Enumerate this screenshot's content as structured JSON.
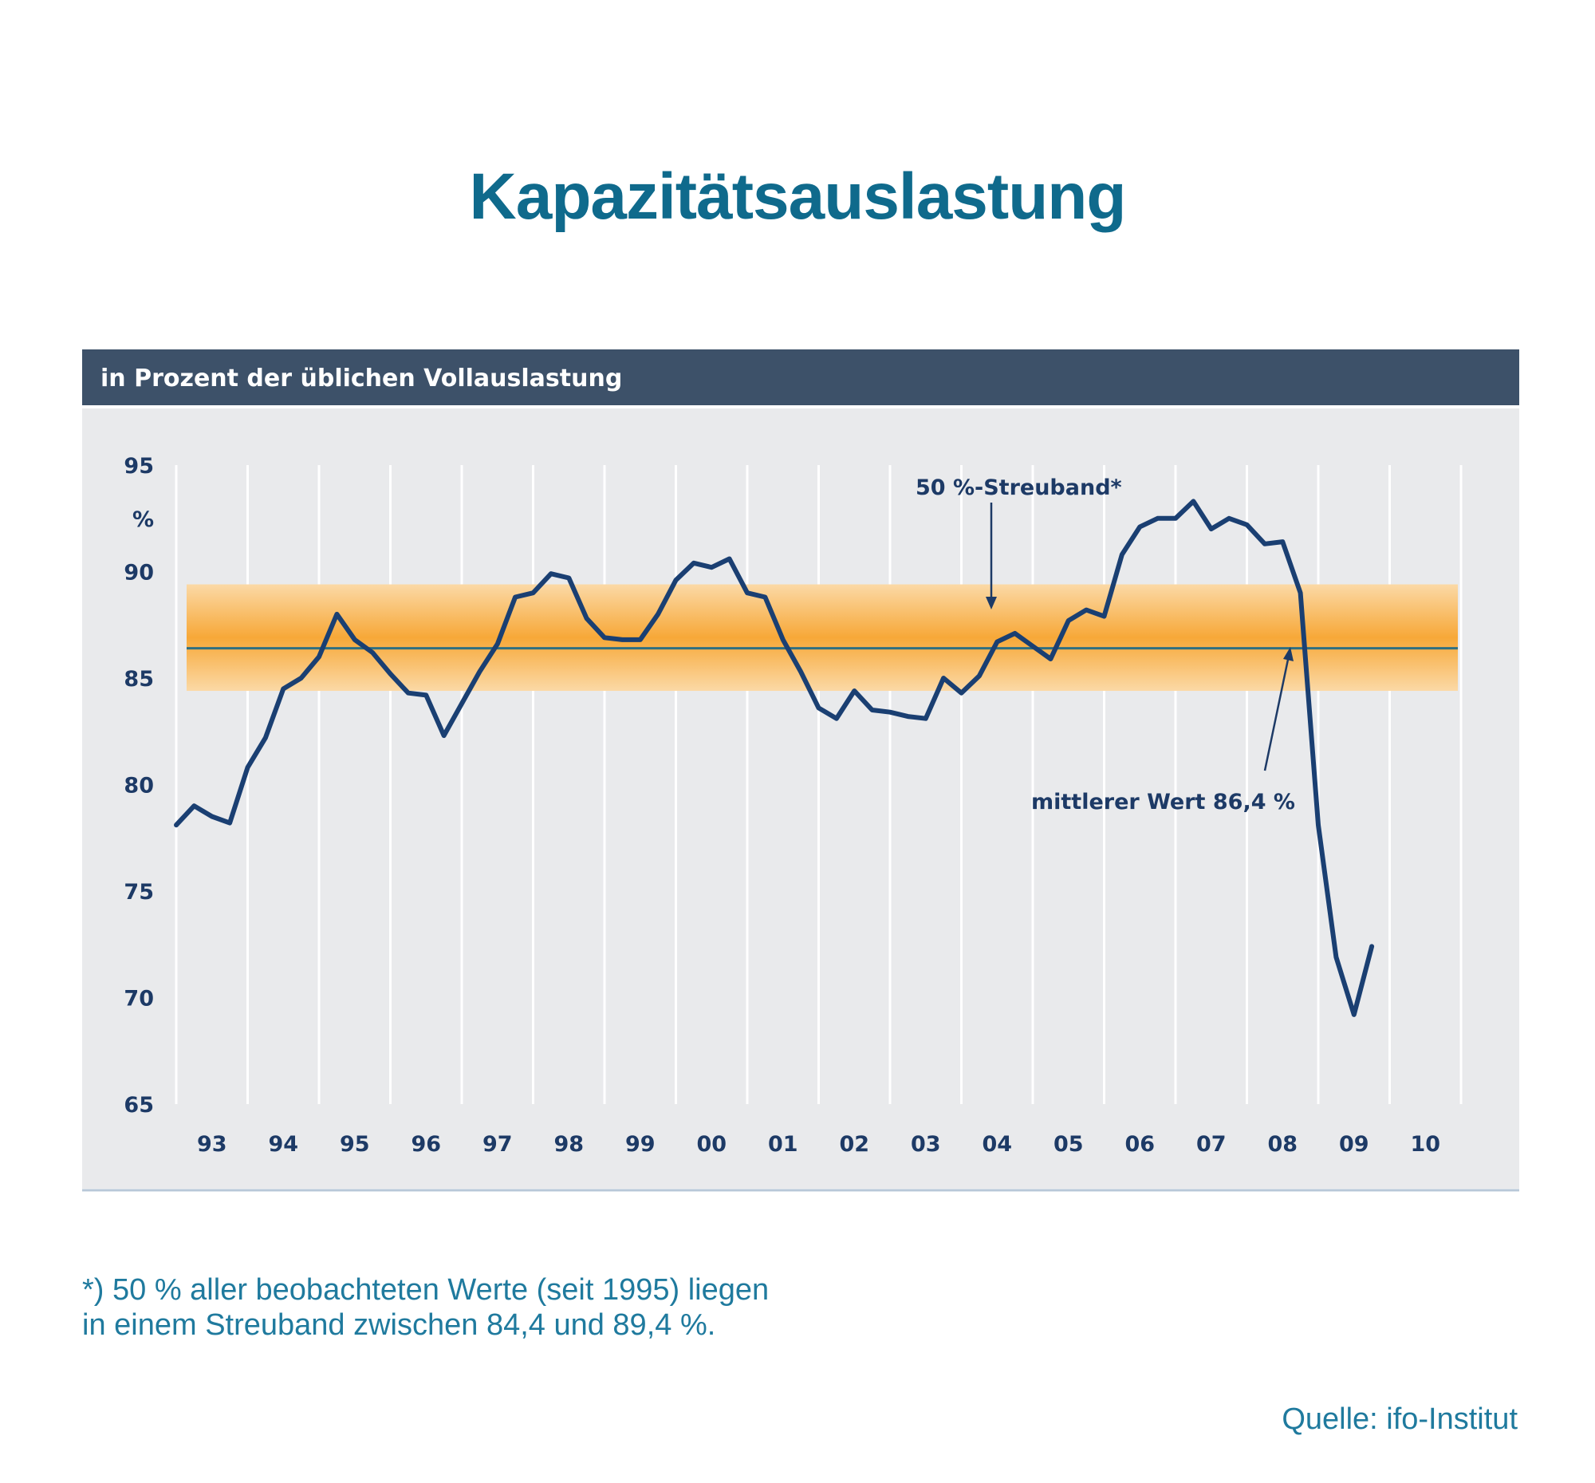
{
  "title": "Kapazitätsauslastung",
  "footnote": {
    "line1": "*) 50 % aller beobachteten Werte (seit 1995) liegen",
    "line2": "in einem Streuband zwischen 84,4 und 89,4 %."
  },
  "source": "Quelle: ifo-Institut",
  "colors": {
    "header_bar": "#3d5169",
    "plot_bg": "#e9eaec",
    "gridline": "#ffffff",
    "line": "#1a3f72",
    "band": "#f7a838",
    "mean_line": "#2f6f80",
    "title": "#0f6a8c",
    "text": "#1d3a66"
  },
  "chart_data": {
    "type": "line",
    "subtitle": "in Prozent der üblichen Vollauslastung",
    "ylabel": "%",
    "ylim": [
      65,
      95
    ],
    "yticks": [
      65,
      70,
      75,
      80,
      85,
      90,
      95
    ],
    "xlim": [
      1993,
      2011
    ],
    "xtick_labels": [
      "93",
      "94",
      "95",
      "96",
      "97",
      "98",
      "99",
      "00",
      "01",
      "02",
      "03",
      "04",
      "05",
      "06",
      "07",
      "08",
      "09",
      "10"
    ],
    "grid": true,
    "band": {
      "label": "50 %-Streuband*",
      "low": 84.4,
      "high": 89.4
    },
    "mean": {
      "label": "mittlerer Wert 86,4 %",
      "value": 86.4
    },
    "series": [
      {
        "x": [
          1993.0,
          1993.25,
          1993.5,
          1993.75,
          1994.0,
          1994.25,
          1994.5,
          1994.75,
          1995.0,
          1995.25,
          1995.5,
          1995.75,
          1996.0,
          1996.25,
          1996.5,
          1996.75,
          1997.0,
          1997.25,
          1997.5,
          1997.75,
          1998.0,
          1998.25,
          1998.5,
          1998.75,
          1999.0,
          1999.25,
          1999.5,
          1999.75,
          2000.0,
          2000.25,
          2000.5,
          2000.75,
          2001.0,
          2001.25,
          2001.5,
          2001.75,
          2002.0,
          2002.25,
          2002.5,
          2002.75,
          2003.0,
          2003.25,
          2003.5,
          2003.75,
          2004.0,
          2004.25,
          2004.5,
          2004.75,
          2005.0,
          2005.25,
          2005.5,
          2005.75,
          2006.0,
          2006.25,
          2006.5,
          2006.75,
          2007.0,
          2007.25,
          2007.5,
          2007.75,
          2008.0,
          2008.25,
          2008.5,
          2008.75,
          2009.0,
          2009.25,
          2009.5,
          2009.75
        ],
        "values": [
          78.1,
          79.0,
          78.5,
          78.2,
          80.8,
          82.2,
          84.5,
          85.0,
          86.0,
          88.0,
          86.8,
          86.2,
          85.2,
          84.3,
          84.2,
          82.3,
          83.8,
          85.3,
          86.6,
          88.8,
          89.0,
          89.9,
          89.7,
          87.8,
          86.9,
          86.8,
          86.8,
          88.0,
          89.6,
          90.4,
          90.2,
          90.6,
          89.0,
          88.8,
          86.8,
          85.3,
          83.6,
          83.1,
          84.4,
          83.5,
          83.4,
          83.2,
          83.1,
          85.0,
          84.3,
          85.1,
          86.7,
          87.1,
          86.5,
          85.9,
          87.7,
          88.2,
          87.9,
          90.8,
          92.1,
          92.5,
          92.5,
          93.3,
          92.0,
          92.5,
          92.2,
          91.3,
          91.4,
          89.0,
          78.1,
          71.9,
          69.2,
          72.4
        ]
      }
    ]
  }
}
